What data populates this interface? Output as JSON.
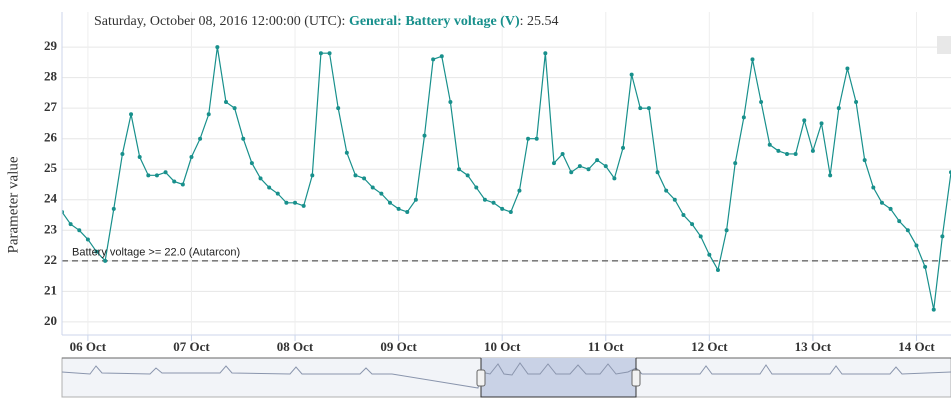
{
  "chart_data": {
    "type": "line",
    "tooltip": {
      "header": "Saturday, October 08, 2016 12:00:00 (UTC):",
      "value_label": ": 25.54"
    },
    "y_label": "Parameter value",
    "x": [
      "2016-10-05T18:00Z",
      "2016-10-05T20:00Z",
      "2016-10-05T22:00Z",
      "2016-10-06T00:00Z",
      "2016-10-06T02:00Z",
      "2016-10-06T04:00Z",
      "2016-10-06T06:00Z",
      "2016-10-06T08:00Z",
      "2016-10-06T10:00Z",
      "2016-10-06T12:00Z",
      "2016-10-06T14:00Z",
      "2016-10-06T16:00Z",
      "2016-10-06T18:00Z",
      "2016-10-06T20:00Z",
      "2016-10-06T22:00Z",
      "2016-10-07T00:00Z",
      "2016-10-07T02:00Z",
      "2016-10-07T04:00Z",
      "2016-10-07T06:00Z",
      "2016-10-07T08:00Z",
      "2016-10-07T10:00Z",
      "2016-10-07T12:00Z",
      "2016-10-07T14:00Z",
      "2016-10-07T16:00Z",
      "2016-10-07T18:00Z",
      "2016-10-07T20:00Z",
      "2016-10-07T22:00Z",
      "2016-10-08T00:00Z",
      "2016-10-08T02:00Z",
      "2016-10-08T04:00Z",
      "2016-10-08T06:00Z",
      "2016-10-08T08:00Z",
      "2016-10-08T10:00Z",
      "2016-10-08T12:00Z",
      "2016-10-08T14:00Z",
      "2016-10-08T16:00Z",
      "2016-10-08T18:00Z",
      "2016-10-08T20:00Z",
      "2016-10-08T22:00Z",
      "2016-10-09T00:00Z",
      "2016-10-09T02:00Z",
      "2016-10-09T04:00Z",
      "2016-10-09T06:00Z",
      "2016-10-09T08:00Z",
      "2016-10-09T10:00Z",
      "2016-10-09T12:00Z",
      "2016-10-09T14:00Z",
      "2016-10-09T16:00Z",
      "2016-10-09T18:00Z",
      "2016-10-09T20:00Z",
      "2016-10-09T22:00Z",
      "2016-10-10T00:00Z",
      "2016-10-10T02:00Z",
      "2016-10-10T04:00Z",
      "2016-10-10T06:00Z",
      "2016-10-10T08:00Z",
      "2016-10-10T10:00Z",
      "2016-10-10T12:00Z",
      "2016-10-10T14:00Z",
      "2016-10-10T16:00Z",
      "2016-10-10T18:00Z",
      "2016-10-10T20:00Z",
      "2016-10-10T22:00Z",
      "2016-10-11T00:00Z",
      "2016-10-11T02:00Z",
      "2016-10-11T04:00Z",
      "2016-10-11T06:00Z",
      "2016-10-11T08:00Z",
      "2016-10-11T10:00Z",
      "2016-10-11T12:00Z",
      "2016-10-11T14:00Z",
      "2016-10-11T16:00Z",
      "2016-10-11T18:00Z",
      "2016-10-11T20:00Z",
      "2016-10-11T22:00Z",
      "2016-10-12T00:00Z",
      "2016-10-12T02:00Z",
      "2016-10-12T04:00Z",
      "2016-10-12T06:00Z",
      "2016-10-12T08:00Z",
      "2016-10-12T10:00Z",
      "2016-10-12T12:00Z",
      "2016-10-12T14:00Z",
      "2016-10-12T16:00Z",
      "2016-10-12T18:00Z",
      "2016-10-12T20:00Z",
      "2016-10-12T22:00Z",
      "2016-10-13T00:00Z",
      "2016-10-13T02:00Z",
      "2016-10-13T04:00Z",
      "2016-10-13T06:00Z",
      "2016-10-13T08:00Z",
      "2016-10-13T10:00Z",
      "2016-10-13T12:00Z",
      "2016-10-13T14:00Z",
      "2016-10-13T16:00Z",
      "2016-10-13T18:00Z",
      "2016-10-13T20:00Z",
      "2016-10-13T22:00Z",
      "2016-10-14T00:00Z",
      "2016-10-14T02:00Z",
      "2016-10-14T04:00Z",
      "2016-10-14T06:00Z",
      "2016-10-14T08:00Z"
    ],
    "series": [
      {
        "name": "General: Battery voltage (V)",
        "color": "#18908c",
        "values": [
          23.6,
          23.2,
          23.0,
          22.7,
          22.3,
          22.0,
          23.7,
          25.5,
          26.8,
          25.4,
          24.8,
          24.8,
          24.9,
          24.6,
          24.5,
          25.4,
          26.0,
          26.8,
          29.0,
          27.2,
          27.0,
          26.0,
          25.2,
          24.7,
          24.4,
          24.2,
          23.9,
          23.9,
          23.8,
          24.8,
          28.8,
          28.8,
          27.0,
          25.54,
          24.8,
          24.7,
          24.4,
          24.2,
          23.9,
          23.7,
          23.6,
          24.0,
          26.1,
          28.6,
          28.7,
          27.2,
          25.0,
          24.8,
          24.4,
          24.0,
          23.9,
          23.7,
          23.6,
          24.3,
          26.0,
          26.0,
          28.8,
          25.2,
          25.5,
          24.9,
          25.1,
          25.0,
          25.3,
          25.1,
          24.7,
          25.7,
          28.1,
          27.0,
          27.0,
          24.9,
          24.3,
          24.0,
          23.5,
          23.2,
          22.8,
          22.2,
          21.7,
          23.0,
          25.2,
          26.7,
          28.6,
          27.2,
          25.8,
          25.6,
          25.5,
          25.5,
          26.6,
          25.6,
          26.5,
          24.8,
          27.0,
          28.3,
          27.2,
          25.3,
          24.4,
          23.9,
          23.7,
          23.3,
          23.0,
          22.5,
          21.8,
          20.4,
          22.8,
          24.9
        ]
      }
    ],
    "thresholds": [
      {
        "value": 22,
        "label": "Battery voltage >= 22.0 (Autarcon)"
      }
    ],
    "xlim": [
      "2016-10-05T18:00Z",
      "2016-10-14T08:00Z"
    ],
    "xticks": [
      {
        "value": "2016-10-06T00:00Z",
        "label": "06 Oct"
      },
      {
        "value": "2016-10-07T00:00Z",
        "label": "07 Oct"
      },
      {
        "value": "2016-10-08T00:00Z",
        "label": "08 Oct"
      },
      {
        "value": "2016-10-09T00:00Z",
        "label": "09 Oct"
      },
      {
        "value": "2016-10-10T00:00Z",
        "label": "10 Oct"
      },
      {
        "value": "2016-10-11T00:00Z",
        "label": "11 Oct"
      },
      {
        "value": "2016-10-12T00:00Z",
        "label": "12 Oct"
      },
      {
        "value": "2016-10-13T00:00Z",
        "label": "13 Oct"
      },
      {
        "value": "2016-10-14T00:00Z",
        "label": "14 Oct"
      }
    ],
    "ylim": [
      19.57,
      30.15
    ],
    "yticks": [
      20,
      21,
      22,
      23,
      24,
      25,
      26,
      27,
      28,
      29
    ],
    "grid": true
  }
}
